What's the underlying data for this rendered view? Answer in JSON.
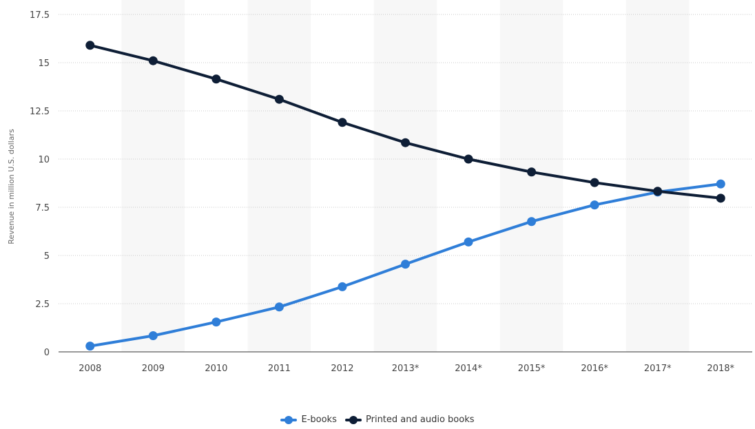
{
  "chart_data": {
    "type": "line",
    "x": [
      "2008",
      "2009",
      "2010",
      "2011",
      "2012",
      "2013*",
      "2014*",
      "2015*",
      "2016*",
      "2017*",
      "2018*"
    ],
    "ylabel": "Revenue in million U.S. dollars",
    "ylim": [
      0,
      17.5
    ],
    "yticks": [
      "0",
      "2.5",
      "5",
      "7.5",
      "10",
      "12.5",
      "15",
      "17.5"
    ],
    "grid": "horizontal dotted",
    "legend_position": "bottom-center",
    "series": [
      {
        "name": "E-books",
        "color": "#2f7ed8",
        "values": [
          0.3,
          0.84,
          1.55,
          2.33,
          3.38,
          4.55,
          5.7,
          6.76,
          7.62,
          8.29,
          8.71
        ]
      },
      {
        "name": "Printed and audio books",
        "color": "#0e1e36",
        "values": [
          15.9,
          15.1,
          14.15,
          13.1,
          11.9,
          10.85,
          10.0,
          9.33,
          8.78,
          8.33,
          7.97
        ]
      }
    ]
  }
}
